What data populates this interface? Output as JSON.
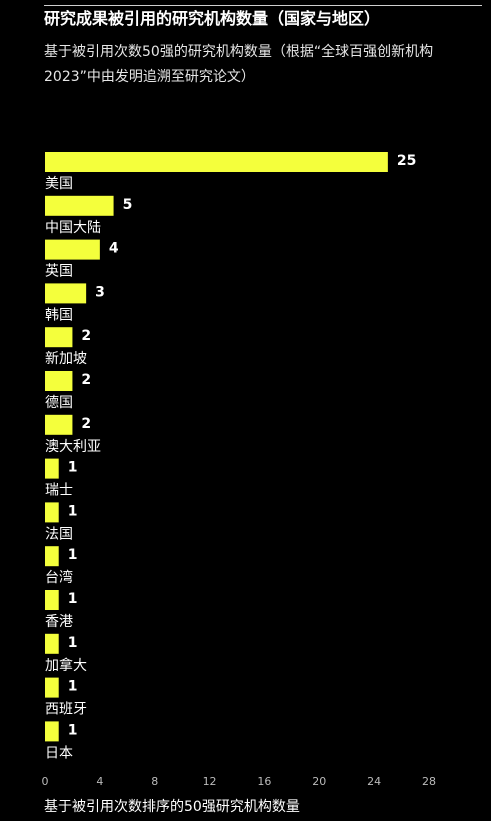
{
  "title": "研究成果被引用的研究机构数量（国家与地区）",
  "subtitle": "基于被引用次数50强的研究机构数量（根据“全球百强创新机构2023”中由发明追溯至研究论文）",
  "caption": "基于被引用次数排序的50强研究机构数量",
  "colors": {
    "bar": "#F4FF3C",
    "background": "#000000",
    "text": "#FFFFFF",
    "tick": "#BBBBBB"
  },
  "chart_data": {
    "type": "bar",
    "orientation": "horizontal",
    "categories": [
      "美国",
      "中国大陆",
      "英国",
      "韩国",
      "新加坡",
      "德国",
      "澳大利亚",
      "瑞士",
      "法国",
      "台湾",
      "香港",
      "加拿大",
      "西班牙",
      "日本"
    ],
    "values": [
      25,
      5,
      4,
      3,
      2,
      2,
      2,
      1,
      1,
      1,
      1,
      1,
      1,
      1
    ],
    "xticks": [
      0,
      4,
      8,
      12,
      16,
      20,
      24,
      28
    ],
    "xlim": [
      0,
      28
    ],
    "xlabel": "基于被引用次数排序的50强研究机构数量",
    "grid": false,
    "legend": "none"
  }
}
